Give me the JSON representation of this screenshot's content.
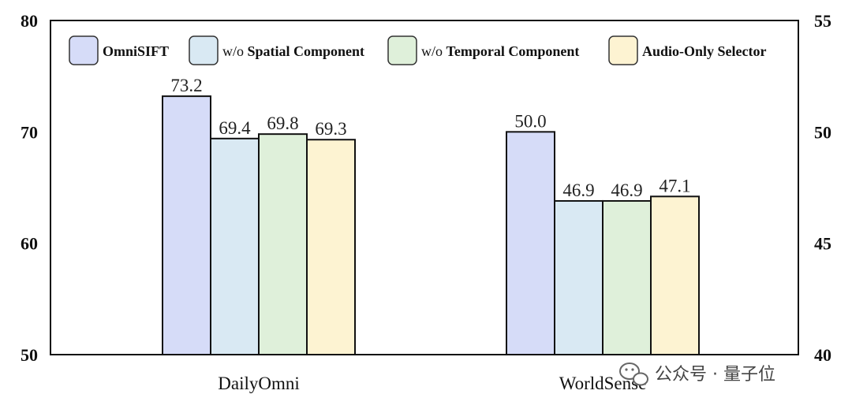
{
  "chart_data": {
    "type": "bar",
    "categories": [
      "DailyOmni",
      "WorldSense"
    ],
    "series": [
      {
        "name_prefix": "",
        "name_bold": "OmniSIFT",
        "color": "#d6dcf8",
        "values": [
          73.2,
          50.0
        ],
        "labels": [
          "73.2",
          "50.0"
        ]
      },
      {
        "name_prefix": "w/o ",
        "name_bold": "Spatial Component",
        "color": "#d9e9f3",
        "values": [
          69.4,
          46.9
        ],
        "labels": [
          "69.4",
          "46.9"
        ]
      },
      {
        "name_prefix": "w/o ",
        "name_bold": "Temporal Component",
        "color": "#dff0da",
        "values": [
          69.8,
          46.9
        ],
        "labels": [
          "69.8",
          "46.9"
        ]
      },
      {
        "name_prefix": "",
        "name_bold": "Audio-Only Selector",
        "color": "#fdf3d2",
        "values": [
          69.3,
          47.1
        ],
        "labels": [
          "69.3",
          "47.1"
        ]
      }
    ],
    "category_axis": [
      "left",
      "right"
    ],
    "ylim_left": [
      50,
      80
    ],
    "yticks_left": [
      "50",
      "60",
      "70",
      "80"
    ],
    "ylim_right": [
      40,
      55
    ],
    "yticks_right": [
      "40",
      "45",
      "50",
      "55"
    ],
    "legend_placement": "top",
    "grid": false
  },
  "watermark": {
    "text": "公众号 · 量子位",
    "icon": "wechat-icon"
  }
}
